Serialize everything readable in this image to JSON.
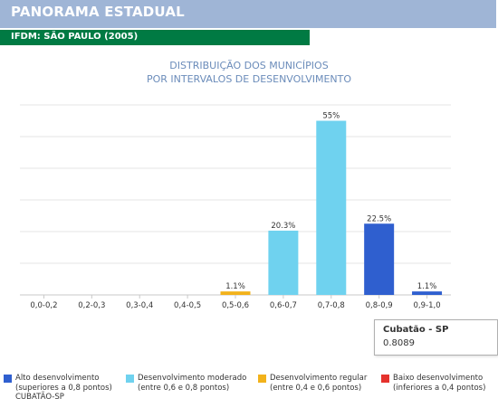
{
  "header": {
    "title": "PANORAMA ESTADUAL"
  },
  "subheader": {
    "title": "IFDM: SÃO PAULO (2005)"
  },
  "chart_data": {
    "type": "bar",
    "title_line1": "DISTRIBUIÇÃO DOS MUNICÍPIOS",
    "title_line2": "POR INTERVALOS DE DESENVOLVIMENTO",
    "xlabel": "",
    "ylabel": "",
    "ylim": [
      0,
      60
    ],
    "grid": true,
    "categories": [
      "0,0-0,2",
      "0,2-0,3",
      "0,3-0,4",
      "0,4-0,5",
      "0,5-0,6",
      "0,6-0,7",
      "0,7-0,8",
      "0,8-0,9",
      "0,9-1,0"
    ],
    "values": [
      0,
      0,
      0,
      0,
      1.1,
      20.3,
      55,
      22.5,
      1.1
    ],
    "data_labels": [
      "",
      "",
      "",
      "",
      "1.1%",
      "20.3%",
      "55%",
      "22.5%",
      "1.1%"
    ],
    "bar_colors": [
      "#e5322d",
      "#e5322d",
      "#e5322d",
      "#e5322d",
      "#f2b21b",
      "#6fd2ef",
      "#6fd2ef",
      "#2f5fcf",
      "#2f5fcf"
    ],
    "legend_placement": "bottom"
  },
  "tooltip": {
    "title": "Cubatão - SP",
    "value": "0.8089"
  },
  "legend": [
    {
      "color": "#2f5fcf",
      "line1": "Alto desenvolvimento",
      "line2": "(superiores a 0,8 pontos)",
      "line3": "CUBATÃO-SP"
    },
    {
      "color": "#6fd2ef",
      "line1": "Desenvolvimento moderado",
      "line2": "(entre 0,6 e 0,8 pontos)",
      "line3": ""
    },
    {
      "color": "#f2b21b",
      "line1": "Desenvolvimento regular",
      "line2": "(entre 0,4 e 0,6 pontos)",
      "line3": ""
    },
    {
      "color": "#e5322d",
      "line1": "Baixo desenvolvimento",
      "line2": "(inferiores a 0,4 pontos)",
      "line3": ""
    }
  ]
}
